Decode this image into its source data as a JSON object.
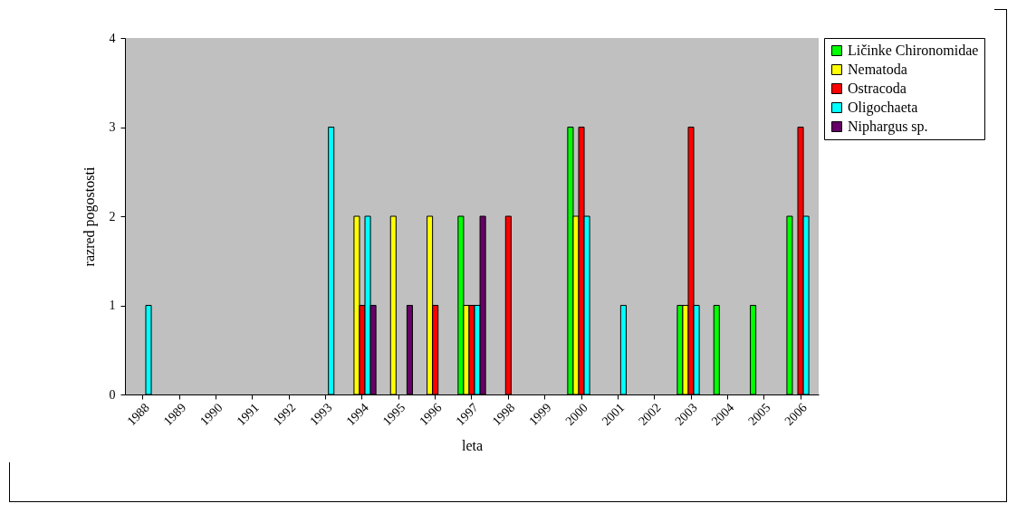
{
  "chart_data": {
    "type": "bar",
    "xlabel": "leta",
    "ylabel": "razred pogostosti",
    "categories": [
      "1988",
      "1989",
      "1990",
      "1991",
      "1992",
      "1993",
      "1994",
      "1995",
      "1996",
      "1997",
      "1998",
      "1999",
      "2000",
      "2001",
      "2002",
      "2003",
      "2004",
      "2005",
      "2006"
    ],
    "series": [
      {
        "name": "Ličinke Chironomidae",
        "color": "#00ff00",
        "values": [
          null,
          null,
          null,
          null,
          null,
          null,
          null,
          null,
          null,
          2,
          null,
          null,
          3,
          null,
          null,
          1,
          1,
          1,
          2
        ]
      },
      {
        "name": "Nematoda",
        "color": "#ffff00",
        "values": [
          null,
          null,
          null,
          null,
          null,
          null,
          2,
          2,
          2,
          1,
          null,
          null,
          2,
          null,
          null,
          1,
          null,
          null,
          null
        ]
      },
      {
        "name": "Ostracoda",
        "color": "#ff0000",
        "values": [
          null,
          null,
          null,
          null,
          null,
          null,
          1,
          null,
          1,
          1,
          2,
          null,
          3,
          null,
          null,
          3,
          null,
          null,
          3
        ]
      },
      {
        "name": "Oligochaeta",
        "color": "#00ffff",
        "values": [
          1,
          null,
          null,
          null,
          null,
          3,
          2,
          null,
          null,
          1,
          null,
          null,
          2,
          1,
          null,
          1,
          null,
          null,
          2
        ]
      },
      {
        "name": "Niphargus sp.",
        "color": "#660066",
        "values": [
          null,
          null,
          null,
          null,
          null,
          null,
          1,
          1,
          null,
          2,
          null,
          null,
          null,
          null,
          null,
          null,
          null,
          null,
          null
        ]
      }
    ],
    "ylim": [
      0,
      4
    ],
    "yticks": [
      0,
      1,
      2,
      3,
      4
    ],
    "grid": false,
    "legend": "right"
  }
}
